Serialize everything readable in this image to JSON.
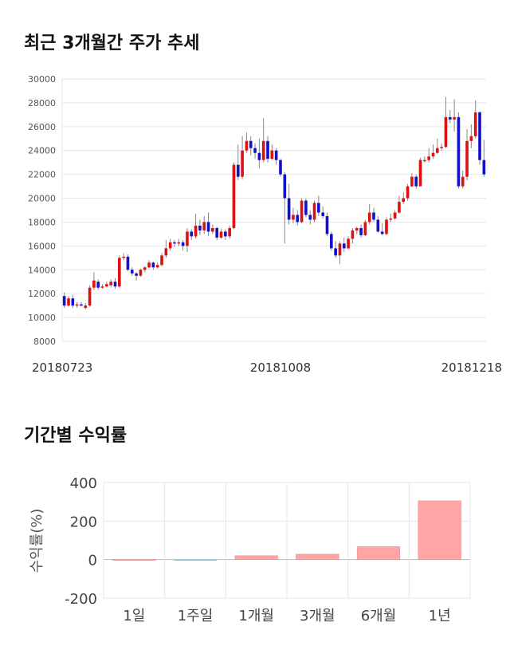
{
  "section1": {
    "title": "최근 3개월간 주가 추세"
  },
  "section2": {
    "title": "기간별 수익률"
  },
  "chart_data": [
    {
      "type": "candlestick",
      "ylim": [
        8000,
        30000
      ],
      "yticks": [
        8000,
        10000,
        12000,
        14000,
        16000,
        18000,
        20000,
        22000,
        24000,
        26000,
        28000,
        30000
      ],
      "xtick_labels": [
        {
          "index": 0,
          "label": "20180723"
        },
        {
          "index": 51,
          "label": "20181008"
        },
        {
          "index": 99,
          "label": "20181218"
        }
      ],
      "grid": true,
      "colors": {
        "up": "#dd1111",
        "down": "#1111cc",
        "wick": "#888888"
      },
      "candles": [
        [
          11800,
          11000,
          12100,
          10800
        ],
        [
          11000,
          11600,
          11800,
          10900
        ],
        [
          11600,
          11000,
          11900,
          10800
        ],
        [
          11000,
          11100,
          11300,
          10800
        ],
        [
          11100,
          11000,
          11300,
          10900
        ],
        [
          10800,
          11000,
          11200,
          10700
        ],
        [
          11000,
          12500,
          12700,
          10900
        ],
        [
          12500,
          13100,
          13800,
          12300
        ],
        [
          13000,
          12500,
          13200,
          12300
        ],
        [
          12500,
          12600,
          12800,
          12400
        ],
        [
          12600,
          12800,
          13000,
          12500
        ],
        [
          12700,
          13000,
          13200,
          12500
        ],
        [
          13000,
          12600,
          13300,
          12400
        ],
        [
          12600,
          15000,
          15200,
          12500
        ],
        [
          15000,
          15100,
          15400,
          14800
        ],
        [
          15100,
          14000,
          15300,
          13900
        ],
        [
          14000,
          13700,
          14200,
          13500
        ],
        [
          13700,
          13500,
          13800,
          13100
        ],
        [
          13500,
          14000,
          14100,
          13400
        ],
        [
          14000,
          14200,
          14300,
          13800
        ],
        [
          14200,
          14600,
          14800,
          14100
        ],
        [
          14600,
          14200,
          14700,
          14000
        ],
        [
          14200,
          14400,
          14600,
          14100
        ],
        [
          14400,
          15200,
          15400,
          14300
        ],
        [
          15200,
          15800,
          16500,
          15000
        ],
        [
          15800,
          16300,
          16600,
          15600
        ],
        [
          16300,
          16200,
          16500,
          15900
        ],
        [
          16200,
          16300,
          16600,
          16000
        ],
        [
          16300,
          16000,
          16500,
          15600
        ],
        [
          16000,
          17200,
          17500,
          15500
        ],
        [
          17200,
          16800,
          17400,
          16500
        ],
        [
          16800,
          17700,
          18700,
          16600
        ],
        [
          17700,
          17300,
          18200,
          16900
        ],
        [
          17300,
          18000,
          18500,
          17000
        ],
        [
          18000,
          17200,
          18800,
          16800
        ],
        [
          17200,
          17500,
          17800,
          17000
        ],
        [
          17500,
          16700,
          17600,
          16500
        ],
        [
          16700,
          17200,
          17400,
          16600
        ],
        [
          17200,
          16800,
          17400,
          16500
        ],
        [
          16800,
          17500,
          17700,
          16600
        ],
        [
          17500,
          22800,
          23000,
          17400
        ],
        [
          22800,
          21800,
          24500,
          21500
        ],
        [
          21800,
          24000,
          25200,
          21600
        ],
        [
          24000,
          24800,
          25500,
          23800
        ],
        [
          24800,
          24200,
          25200,
          23600
        ],
        [
          24200,
          23800,
          24600,
          23300
        ],
        [
          23800,
          23200,
          25000,
          22500
        ],
        [
          23200,
          24800,
          26700,
          23000
        ],
        [
          24800,
          23300,
          25200,
          23000
        ],
        [
          23300,
          24000,
          24500,
          23200
        ],
        [
          24000,
          23200,
          24200,
          22800
        ],
        [
          23200,
          22000,
          23300,
          21800
        ],
        [
          22000,
          20000,
          22200,
          16200
        ],
        [
          20000,
          18200,
          21200,
          17800
        ],
        [
          18200,
          18600,
          19200,
          17900
        ],
        [
          18600,
          18000,
          19000,
          17700
        ],
        [
          18000,
          19800,
          20000,
          17900
        ],
        [
          19800,
          18600,
          20000,
          18400
        ],
        [
          18600,
          18200,
          19000,
          17800
        ],
        [
          18200,
          19600,
          19800,
          18000
        ],
        [
          19600,
          18800,
          20200,
          18500
        ],
        [
          18800,
          18500,
          19300,
          18300
        ],
        [
          18500,
          17000,
          18800,
          16800
        ],
        [
          17000,
          15800,
          17200,
          15600
        ],
        [
          15800,
          15200,
          16400,
          15000
        ],
        [
          15200,
          16200,
          16400,
          14500
        ],
        [
          16200,
          15800,
          16700,
          15500
        ],
        [
          15800,
          16600,
          16800,
          15700
        ],
        [
          16600,
          17300,
          17500,
          16200
        ],
        [
          17300,
          17500,
          17600,
          17000
        ],
        [
          17500,
          16900,
          17800,
          16700
        ],
        [
          16900,
          18000,
          18200,
          16800
        ],
        [
          18000,
          18800,
          19500,
          17800
        ],
        [
          18800,
          18200,
          19200,
          18000
        ],
        [
          18200,
          17200,
          18500,
          17100
        ],
        [
          17200,
          17000,
          17900,
          16900
        ],
        [
          17000,
          18200,
          18400,
          16900
        ],
        [
          18200,
          18300,
          18700,
          18000
        ],
        [
          18300,
          18800,
          19000,
          18200
        ],
        [
          18800,
          19700,
          20200,
          18700
        ],
        [
          19700,
          20000,
          20500,
          19500
        ],
        [
          20000,
          21000,
          21200,
          19800
        ],
        [
          21000,
          21800,
          22100,
          20900
        ],
        [
          21800,
          21000,
          22000,
          20800
        ],
        [
          21000,
          23200,
          23400,
          21000
        ],
        [
          23200,
          23200,
          23500,
          23000
        ],
        [
          23200,
          23500,
          24200,
          23000
        ],
        [
          23500,
          23800,
          24500,
          23300
        ],
        [
          23800,
          24200,
          25000,
          23700
        ],
        [
          24200,
          24300,
          24600,
          24000
        ],
        [
          24300,
          26800,
          28500,
          24200
        ],
        [
          26800,
          26600,
          27400,
          26300
        ],
        [
          26600,
          26800,
          28300,
          25600
        ],
        [
          26800,
          21000,
          27200,
          20800
        ],
        [
          21000,
          21800,
          22300,
          20800
        ],
        [
          21800,
          24800,
          25800,
          21500
        ],
        [
          24800,
          25200,
          26200,
          24200
        ],
        [
          25200,
          27200,
          28200,
          25000
        ],
        [
          27200,
          23200,
          27300,
          22800
        ],
        [
          23200,
          22000,
          24900,
          21800
        ]
      ]
    },
    {
      "type": "bar",
      "categories": [
        "1일",
        "1주일",
        "1개월",
        "3개월",
        "6개월",
        "1년"
      ],
      "values": [
        0,
        -3,
        20,
        28,
        67,
        305
      ],
      "ylim": [
        -200,
        400
      ],
      "yticks": [
        -200,
        0,
        200,
        400
      ],
      "ylabel": "수익률(%)",
      "grid": true,
      "colors": {
        "positive": "#ffa5a5",
        "negative": "#a9cfe0"
      }
    }
  ]
}
